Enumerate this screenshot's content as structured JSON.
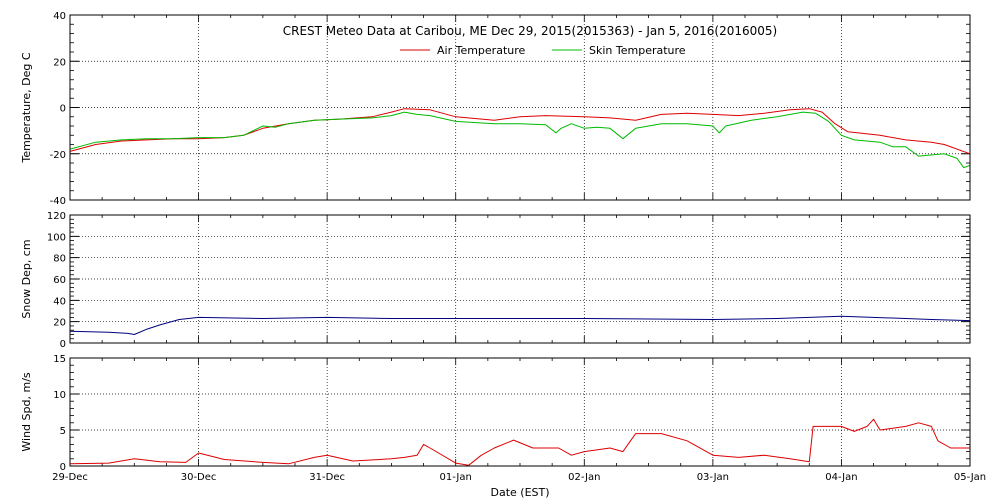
{
  "title": "CREST Meteo Data at Caribou, ME   Dec 29, 2015(2015363) - Jan  5, 2016(2016005)",
  "x_axis": {
    "label": "Date (EST)",
    "range": [
      0,
      7
    ],
    "ticks": [
      0,
      1,
      2,
      3,
      4,
      5,
      6,
      7
    ],
    "tick_labels": [
      "29-Dec",
      "30-Dec",
      "31-Dec",
      "01-Jan",
      "02-Jan",
      "03-Jan",
      "04-Jan",
      "05-Jan"
    ]
  },
  "colors": {
    "air": "#dd0000",
    "skin": "#00bb00",
    "snow": "#000080",
    "wind": "#dd0000",
    "grid": "#000000"
  },
  "chart_data": [
    {
      "type": "line",
      "ylabel": "Temperature, Deg C",
      "ylim": [
        -40,
        40
      ],
      "yticks": [
        -40,
        -20,
        0,
        20,
        40
      ],
      "grid": true,
      "legend": "top-center",
      "series": [
        {
          "name": "Air Temperature",
          "color": "#dd0000",
          "points": [
            [
              0,
              -19
            ],
            [
              0.2,
              -16
            ],
            [
              0.4,
              -14.5
            ],
            [
              0.6,
              -14
            ],
            [
              0.8,
              -13.5
            ],
            [
              1.0,
              -13.5
            ],
            [
              1.2,
              -13
            ],
            [
              1.35,
              -12
            ],
            [
              1.5,
              -9
            ],
            [
              1.7,
              -7
            ],
            [
              1.9,
              -5.5
            ],
            [
              2.1,
              -5
            ],
            [
              2.35,
              -4
            ],
            [
              2.5,
              -2
            ],
            [
              2.6,
              -0.5
            ],
            [
              2.8,
              -1
            ],
            [
              3.0,
              -4
            ],
            [
              3.3,
              -5.5
            ],
            [
              3.5,
              -4
            ],
            [
              3.7,
              -3.5
            ],
            [
              4.0,
              -4
            ],
            [
              4.2,
              -4.5
            ],
            [
              4.4,
              -5.5
            ],
            [
              4.6,
              -3
            ],
            [
              4.8,
              -2.5
            ],
            [
              5.0,
              -3
            ],
            [
              5.2,
              -3.5
            ],
            [
              5.4,
              -2.5
            ],
            [
              5.6,
              -1
            ],
            [
              5.75,
              -0.5
            ],
            [
              5.85,
              -2
            ],
            [
              5.95,
              -7
            ],
            [
              6.05,
              -10.5
            ],
            [
              6.3,
              -12
            ],
            [
              6.5,
              -14
            ],
            [
              6.7,
              -15
            ],
            [
              6.8,
              -16
            ],
            [
              7.0,
              -20
            ]
          ]
        },
        {
          "name": "Skin Temperature",
          "color": "#00bb00",
          "points": [
            [
              0,
              -18
            ],
            [
              0.2,
              -15
            ],
            [
              0.4,
              -14
            ],
            [
              0.6,
              -13.5
            ],
            [
              0.8,
              -13.5
            ],
            [
              1.0,
              -13
            ],
            [
              1.2,
              -13
            ],
            [
              1.35,
              -12
            ],
            [
              1.5,
              -8
            ],
            [
              1.6,
              -8.5
            ],
            [
              1.7,
              -7
            ],
            [
              1.9,
              -5.5
            ],
            [
              2.1,
              -5
            ],
            [
              2.35,
              -4.5
            ],
            [
              2.5,
              -3.5
            ],
            [
              2.6,
              -2
            ],
            [
              2.7,
              -3
            ],
            [
              2.8,
              -3.5
            ],
            [
              3.0,
              -6
            ],
            [
              3.3,
              -7
            ],
            [
              3.5,
              -7
            ],
            [
              3.7,
              -7.5
            ],
            [
              3.78,
              -11
            ],
            [
              3.82,
              -9
            ],
            [
              3.9,
              -7
            ],
            [
              4.0,
              -9
            ],
            [
              4.1,
              -8.5
            ],
            [
              4.2,
              -9
            ],
            [
              4.3,
              -13.5
            ],
            [
              4.4,
              -9
            ],
            [
              4.5,
              -8
            ],
            [
              4.6,
              -7
            ],
            [
              4.8,
              -7
            ],
            [
              5.0,
              -8
            ],
            [
              5.05,
              -11
            ],
            [
              5.1,
              -8
            ],
            [
              5.3,
              -5.5
            ],
            [
              5.5,
              -4
            ],
            [
              5.7,
              -2
            ],
            [
              5.8,
              -2.5
            ],
            [
              5.9,
              -6
            ],
            [
              6.0,
              -12
            ],
            [
              6.1,
              -14
            ],
            [
              6.3,
              -15
            ],
            [
              6.4,
              -17
            ],
            [
              6.5,
              -17
            ],
            [
              6.6,
              -21
            ],
            [
              6.8,
              -20
            ],
            [
              6.9,
              -22
            ],
            [
              6.95,
              -26
            ],
            [
              7.0,
              -25
            ]
          ]
        }
      ]
    },
    {
      "type": "line",
      "ylabel": "Snow Dep, cm",
      "ylim": [
        0,
        120
      ],
      "yticks": [
        0,
        20,
        40,
        60,
        80,
        100,
        120
      ],
      "grid": true,
      "series": [
        {
          "color": "#000080",
          "points": [
            [
              0,
              11
            ],
            [
              0.3,
              10
            ],
            [
              0.45,
              9
            ],
            [
              0.5,
              8
            ],
            [
              0.6,
              13
            ],
            [
              0.7,
              17
            ],
            [
              0.85,
              22
            ],
            [
              1.0,
              24
            ],
            [
              1.5,
              23
            ],
            [
              2.0,
              24
            ],
            [
              2.5,
              23
            ],
            [
              3.0,
              23
            ],
            [
              4.0,
              23
            ],
            [
              5.0,
              22
            ],
            [
              5.5,
              23
            ],
            [
              6.0,
              25
            ],
            [
              6.5,
              23
            ],
            [
              6.7,
              22
            ],
            [
              7.0,
              21
            ]
          ]
        }
      ]
    },
    {
      "type": "line",
      "ylabel": "Wind Spd, m/s",
      "ylim": [
        0,
        15
      ],
      "yticks": [
        0,
        5,
        10,
        15
      ],
      "grid": true,
      "series": [
        {
          "color": "#dd0000",
          "points": [
            [
              0,
              0.3
            ],
            [
              0.3,
              0.4
            ],
            [
              0.5,
              1
            ],
            [
              0.7,
              0.6
            ],
            [
              0.9,
              0.5
            ],
            [
              1.0,
              1.8
            ],
            [
              1.2,
              0.9
            ],
            [
              1.5,
              0.5
            ],
            [
              1.7,
              0.3
            ],
            [
              1.9,
              1.2
            ],
            [
              2.0,
              1.5
            ],
            [
              2.2,
              0.7
            ],
            [
              2.5,
              1.0
            ],
            [
              2.6,
              1.2
            ],
            [
              2.7,
              1.5
            ],
            [
              2.75,
              3.0
            ],
            [
              2.8,
              2.5
            ],
            [
              3.0,
              0.4
            ],
            [
              3.1,
              0.1
            ],
            [
              3.2,
              1.5
            ],
            [
              3.3,
              2.5
            ],
            [
              3.45,
              3.6
            ],
            [
              3.6,
              2.5
            ],
            [
              3.8,
              2.5
            ],
            [
              3.9,
              1.5
            ],
            [
              4.0,
              2.0
            ],
            [
              4.2,
              2.5
            ],
            [
              4.3,
              2.0
            ],
            [
              4.4,
              4.5
            ],
            [
              4.6,
              4.5
            ],
            [
              4.8,
              3.5
            ],
            [
              5.0,
              1.5
            ],
            [
              5.2,
              1.2
            ],
            [
              5.4,
              1.5
            ],
            [
              5.6,
              1.0
            ],
            [
              5.75,
              0.6
            ],
            [
              5.78,
              5.5
            ],
            [
              6.0,
              5.5
            ],
            [
              6.1,
              4.8
            ],
            [
              6.2,
              5.5
            ],
            [
              6.25,
              6.5
            ],
            [
              6.3,
              5.0
            ],
            [
              6.5,
              5.5
            ],
            [
              6.6,
              6.0
            ],
            [
              6.7,
              5.5
            ],
            [
              6.75,
              3.5
            ],
            [
              6.85,
              2.5
            ],
            [
              7.0,
              2.5
            ]
          ]
        }
      ]
    }
  ]
}
